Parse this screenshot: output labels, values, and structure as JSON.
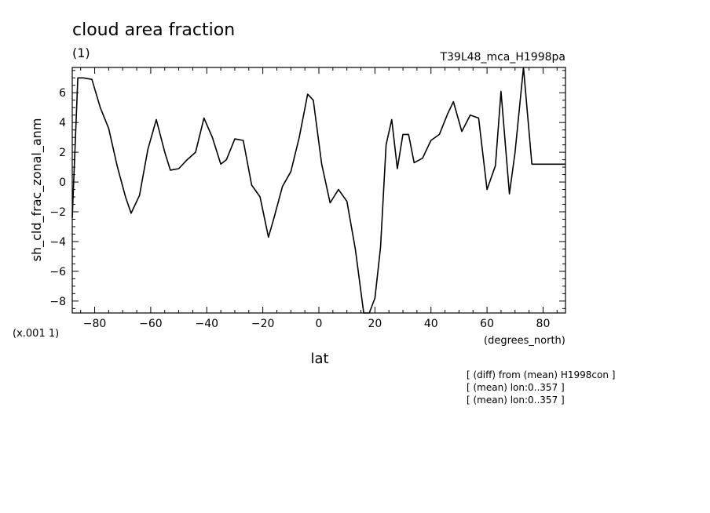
{
  "chart_data": {
    "type": "line",
    "title": "cloud area fraction",
    "subtitle": "(1)",
    "experiment": "T39L48_mca_H1998pa",
    "xlabel": "lat",
    "x_unit": "(degrees_north)",
    "ylabel": "sh_cld_frac_zonal_anm",
    "y_scale_note": "(x.001 1)",
    "xlim": [
      -88,
      88
    ],
    "ylim": [
      -8.8,
      7.7
    ],
    "xticks": [
      -80,
      -60,
      -40,
      -20,
      0,
      20,
      40,
      60,
      80
    ],
    "yticks": [
      -8,
      -6,
      -4,
      -2,
      0,
      2,
      4,
      6
    ],
    "grid": false,
    "notes": [
      "[ (diff) from (mean) H1998con ]",
      "[ (mean) lon:0..357 ]",
      "[ (mean) lon:0..357 ]"
    ],
    "series": [
      {
        "x": [
          -88,
          -86,
          -84,
          -81,
          -78,
          -75,
          -72,
          -69,
          -67,
          -64,
          -61,
          -58,
          -55,
          -53,
          -50,
          -47,
          -44,
          -41,
          -38,
          -35,
          -33,
          -30,
          -27,
          -24,
          -21,
          -18,
          -16,
          -13,
          -10,
          -7,
          -4,
          -2,
          1,
          4,
          7,
          10,
          13,
          16,
          18,
          20,
          22,
          24,
          26,
          28,
          30,
          32,
          34,
          37,
          40,
          43,
          46,
          48,
          51,
          54,
          57,
          60,
          63,
          65,
          68,
          70,
          73,
          76,
          79,
          82,
          85,
          88
        ],
        "values": [
          -2.4,
          7.0,
          7.0,
          6.9,
          5.0,
          3.6,
          1.1,
          -1.0,
          -2.1,
          -0.9,
          2.2,
          4.2,
          2.0,
          0.8,
          0.9,
          1.5,
          2.0,
          4.3,
          3.0,
          1.2,
          1.5,
          2.9,
          2.8,
          -0.2,
          -1.0,
          -3.7,
          -2.4,
          -0.3,
          0.7,
          3.0,
          5.9,
          5.5,
          1.2,
          -1.4,
          -0.5,
          -1.3,
          -4.5,
          -8.8,
          -8.8,
          -7.8,
          -4.4,
          2.5,
          4.2,
          0.9,
          3.2,
          3.2,
          1.3,
          1.6,
          2.8,
          3.2,
          4.6,
          5.4,
          3.4,
          4.5,
          4.3,
          -0.5,
          1.1,
          6.1,
          -0.8,
          2.0,
          7.7,
          1.2,
          1.2,
          1.2,
          1.2,
          1.2
        ]
      }
    ]
  }
}
